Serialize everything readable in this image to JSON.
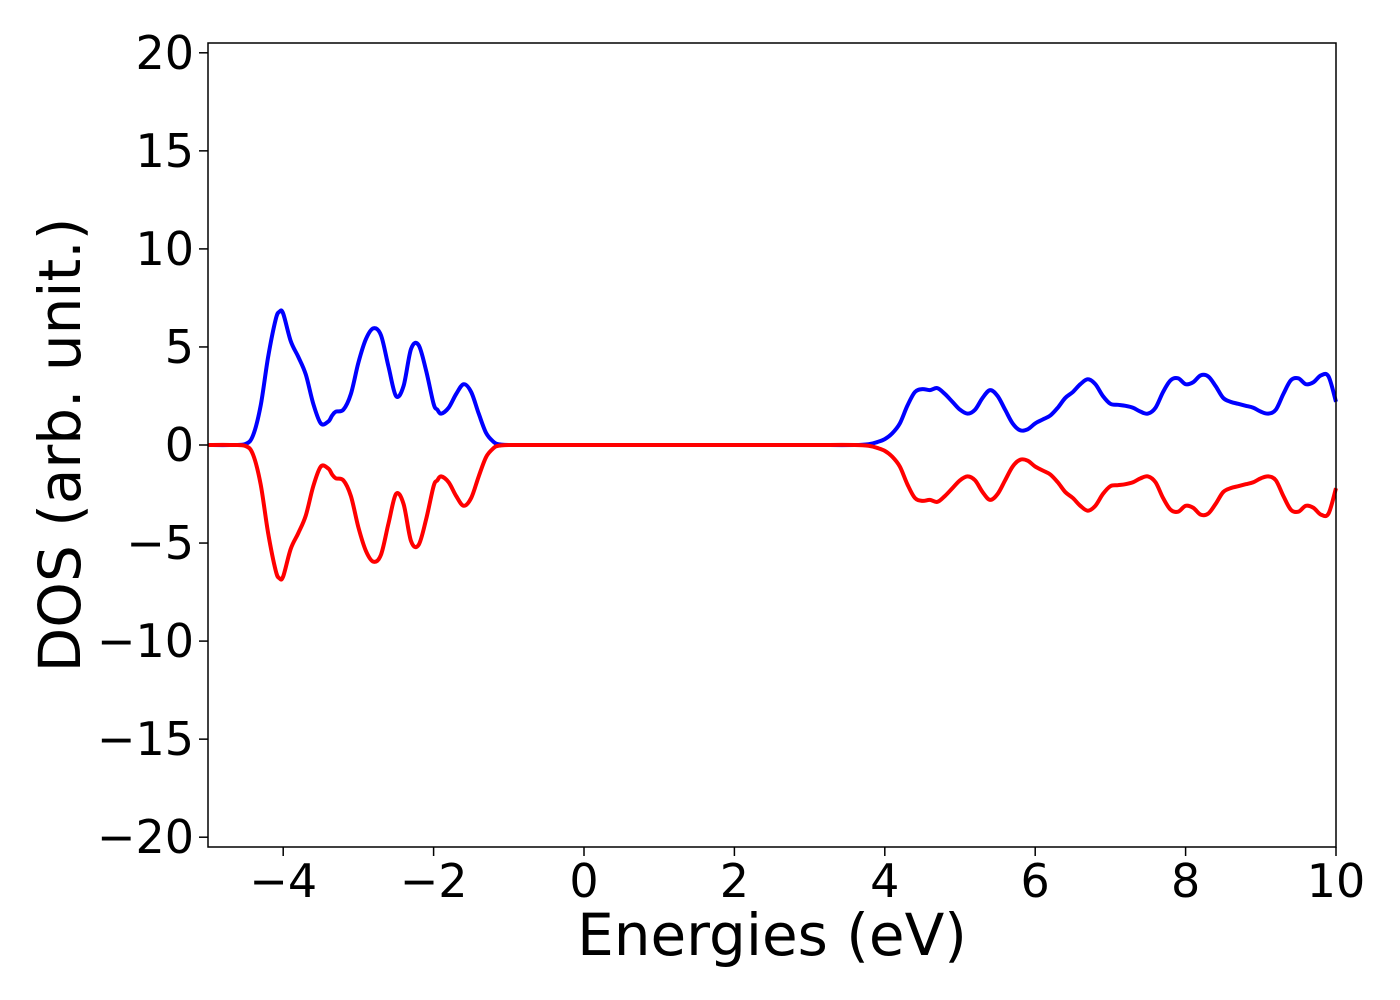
{
  "chart_data": {
    "type": "line",
    "title": "",
    "xlabel": "Energies (eV)",
    "ylabel": "DOS (arb. unit.)",
    "xlim": [
      -5,
      10
    ],
    "ylim": [
      -20.5,
      20.5
    ],
    "x_ticks": [
      -4,
      -2,
      0,
      2,
      4,
      6,
      8,
      10
    ],
    "y_ticks": [
      -20,
      -15,
      -10,
      -5,
      0,
      5,
      10,
      15,
      20
    ],
    "x_tick_labels": [
      "−4",
      "−2",
      "0",
      "2",
      "4",
      "6",
      "8",
      "10"
    ],
    "y_tick_labels": [
      "−20",
      "−15",
      "−10",
      "−5",
      "0",
      "5",
      "10",
      "15",
      "20"
    ],
    "grid": false,
    "legend": "none",
    "x": [
      -5.0,
      -4.7,
      -4.5,
      -4.4,
      -4.3,
      -4.2,
      -4.1,
      -4.05,
      -4.0,
      -3.9,
      -3.8,
      -3.7,
      -3.6,
      -3.5,
      -3.4,
      -3.35,
      -3.3,
      -3.2,
      -3.1,
      -3.0,
      -2.9,
      -2.8,
      -2.7,
      -2.6,
      -2.5,
      -2.4,
      -2.3,
      -2.2,
      -2.1,
      -2.0,
      -1.95,
      -1.9,
      -1.8,
      -1.7,
      -1.6,
      -1.5,
      -1.4,
      -1.3,
      -1.2,
      -1.15,
      -1.1,
      -1.0,
      -0.9,
      -0.8,
      -0.7,
      -0.6,
      -0.5,
      -0.3,
      0.0,
      1.0,
      2.0,
      3.0,
      3.6,
      3.8,
      3.9,
      4.0,
      4.1,
      4.2,
      4.3,
      4.4,
      4.5,
      4.6,
      4.7,
      4.8,
      4.9,
      5.0,
      5.1,
      5.2,
      5.3,
      5.4,
      5.5,
      5.6,
      5.7,
      5.8,
      5.9,
      6.0,
      6.1,
      6.2,
      6.3,
      6.4,
      6.5,
      6.6,
      6.7,
      6.8,
      6.9,
      7.0,
      7.1,
      7.2,
      7.3,
      7.4,
      7.5,
      7.6,
      7.7,
      7.8,
      7.9,
      8.0,
      8.1,
      8.2,
      8.3,
      8.4,
      8.5,
      8.6,
      8.7,
      8.8,
      8.9,
      9.0,
      9.1,
      9.2,
      9.3,
      9.4,
      9.5,
      9.6,
      9.7,
      9.8,
      9.9,
      10.0
    ],
    "series": [
      {
        "color": "#0000ff",
        "values": [
          0.0,
          0.0,
          0.05,
          0.5,
          2.0,
          4.5,
          6.4,
          6.8,
          6.7,
          5.3,
          4.5,
          3.6,
          2.1,
          1.1,
          1.2,
          1.5,
          1.7,
          1.8,
          2.6,
          4.2,
          5.4,
          5.95,
          5.6,
          4.0,
          2.5,
          3.0,
          4.9,
          5.1,
          3.8,
          2.1,
          1.8,
          1.6,
          1.9,
          2.6,
          3.1,
          2.7,
          1.6,
          0.6,
          0.15,
          0.05,
          0.02,
          0.0,
          0.0,
          0.0,
          0.0,
          0.0,
          0.0,
          0.0,
          0.0,
          0.0,
          0.0,
          0.0,
          0.0,
          0.05,
          0.15,
          0.3,
          0.6,
          1.1,
          2.0,
          2.7,
          2.85,
          2.8,
          2.9,
          2.6,
          2.2,
          1.8,
          1.6,
          1.8,
          2.4,
          2.8,
          2.5,
          1.8,
          1.1,
          0.75,
          0.8,
          1.1,
          1.3,
          1.5,
          1.9,
          2.4,
          2.7,
          3.1,
          3.35,
          3.1,
          2.5,
          2.1,
          2.05,
          2.0,
          1.9,
          1.7,
          1.6,
          1.9,
          2.7,
          3.3,
          3.4,
          3.1,
          3.2,
          3.55,
          3.5,
          3.0,
          2.4,
          2.2,
          2.1,
          2.0,
          1.9,
          1.7,
          1.6,
          1.8,
          2.6,
          3.3,
          3.4,
          3.1,
          3.2,
          3.55,
          3.5,
          2.2
        ]
      },
      {
        "color": "#ff0000",
        "values": [
          0.0,
          0.0,
          -0.05,
          -0.5,
          -2.0,
          -4.5,
          -6.4,
          -6.8,
          -6.7,
          -5.3,
          -4.5,
          -3.6,
          -2.1,
          -1.1,
          -1.2,
          -1.5,
          -1.7,
          -1.8,
          -2.6,
          -4.2,
          -5.4,
          -5.95,
          -5.6,
          -4.0,
          -2.5,
          -3.0,
          -4.9,
          -5.1,
          -3.8,
          -2.1,
          -1.8,
          -1.6,
          -1.9,
          -2.6,
          -3.1,
          -2.7,
          -1.6,
          -0.6,
          -0.15,
          -0.05,
          -0.02,
          0.0,
          0.0,
          0.0,
          0.0,
          0.0,
          0.0,
          0.0,
          0.0,
          0.0,
          0.0,
          0.0,
          0.0,
          -0.05,
          -0.15,
          -0.3,
          -0.6,
          -1.1,
          -2.0,
          -2.7,
          -2.85,
          -2.8,
          -2.9,
          -2.6,
          -2.2,
          -1.8,
          -1.6,
          -1.8,
          -2.4,
          -2.8,
          -2.5,
          -1.8,
          -1.1,
          -0.75,
          -0.8,
          -1.1,
          -1.3,
          -1.5,
          -1.9,
          -2.4,
          -2.7,
          -3.1,
          -3.35,
          -3.1,
          -2.5,
          -2.1,
          -2.05,
          -2.0,
          -1.9,
          -1.7,
          -1.6,
          -1.9,
          -2.7,
          -3.3,
          -3.4,
          -3.1,
          -3.2,
          -3.55,
          -3.5,
          -3.0,
          -2.4,
          -2.2,
          -2.1,
          -2.0,
          -1.9,
          -1.7,
          -1.6,
          -1.8,
          -2.6,
          -3.3,
          -3.4,
          -3.1,
          -3.2,
          -3.55,
          -3.5,
          -2.2
        ]
      }
    ]
  }
}
